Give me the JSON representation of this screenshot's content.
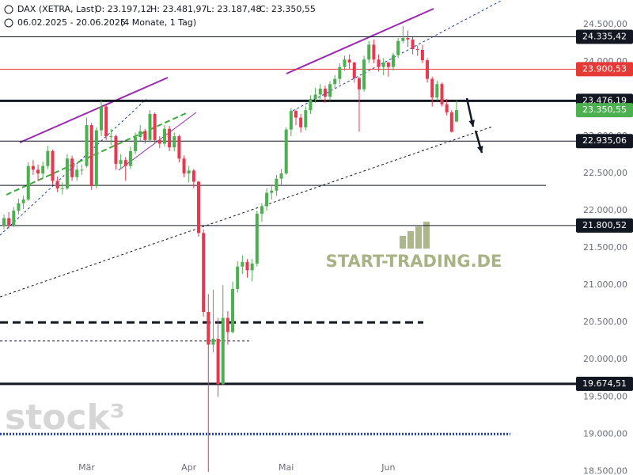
{
  "chart_data": {
    "type": "candlestick",
    "title": "DAX (XETRA, Last)",
    "ohlc_header": [
      "O: 23.197,12",
      "H: 23.481,97",
      "L: 23.187,48",
      "C: 23.350,55"
    ],
    "subtitle": "06.02.2025 - 20.06.2025",
    "period": "(4 Monate, 1 Tag)",
    "watermarks": [
      "START-TRADING.DE",
      "stock³"
    ],
    "up_color": "#4caf50",
    "down_color": "#e8384f",
    "ylim": [
      18450,
      24830
    ],
    "yticks": [
      {
        "value": 18500,
        "label": "18.500,00"
      },
      {
        "value": 19000,
        "label": "19.000,00"
      },
      {
        "value": 19500,
        "label": "19.500,00"
      },
      {
        "value": 20000,
        "label": "20.000,00"
      },
      {
        "value": 20500,
        "label": "20.500,00"
      },
      {
        "value": 21000,
        "label": "21.000,00"
      },
      {
        "value": 21500,
        "label": "21.500,00"
      },
      {
        "value": 22000,
        "label": "22.000,00"
      },
      {
        "value": 22500,
        "label": "22.500,00"
      },
      {
        "value": 23000,
        "label": "23.000,00"
      },
      {
        "value": 23500,
        "label": "23.500,00"
      },
      {
        "value": 24000,
        "label": "24.000,00"
      },
      {
        "value": 24500,
        "label": "24.500,00"
      }
    ],
    "xticks": [
      {
        "value": 17,
        "label": "Mär"
      },
      {
        "value": 38,
        "label": "Apr"
      },
      {
        "value": 58,
        "label": "Mai"
      },
      {
        "value": 79,
        "label": "Jun"
      }
    ],
    "levels": [
      {
        "value": 24335.42,
        "label": "24.335,42",
        "color": "#131722",
        "width": 1
      },
      {
        "value": 23900.53,
        "label": "23.900,53",
        "color": "#e53935",
        "width": 1
      },
      {
        "value": 23476.19,
        "label": "23.476,19",
        "color": "#131722",
        "width": 3
      },
      {
        "value": 22935.06,
        "label": "22.935,06",
        "color": "#131722",
        "width": 1
      },
      {
        "value": 21800.52,
        "label": "21.800,52",
        "color": "#131722",
        "width": 1
      },
      {
        "value": 19674.51,
        "label": "19.674,51",
        "color": "#131722",
        "width": 3
      },
      {
        "value": 23350.55,
        "label": "23.350,55",
        "color": "#4caf50",
        "width": 0
      }
    ],
    "lines": [
      {
        "value": 22340,
        "color": "#131722",
        "width": 1,
        "dash": "none"
      },
      {
        "value": 20500,
        "color": "#131722",
        "width": 3,
        "dash": "10 6"
      },
      {
        "value": 20250,
        "color": "#131722",
        "width": 1,
        "dash": "3 3"
      },
      {
        "value": 19000,
        "color": "#1e3fa8",
        "width": 3,
        "dash": "2 2"
      }
    ],
    "candles": [
      [
        21800,
        21950,
        21750,
        21900
      ],
      [
        21900,
        21980,
        21760,
        21800
      ],
      [
        21800,
        22050,
        21780,
        22000
      ],
      [
        22000,
        22160,
        21950,
        22100
      ],
      [
        22100,
        22200,
        22020,
        22150
      ],
      [
        22150,
        22650,
        22130,
        22600
      ],
      [
        22600,
        22680,
        22480,
        22550
      ],
      [
        22550,
        22620,
        22400,
        22500
      ],
      [
        22500,
        22660,
        22440,
        22600
      ],
      [
        22600,
        22870,
        22560,
        22800
      ],
      [
        22800,
        22820,
        22350,
        22400
      ],
      [
        22400,
        22460,
        22250,
        22300
      ],
      [
        22300,
        22380,
        22220,
        22300
      ],
      [
        22300,
        22760,
        22280,
        22700
      ],
      [
        22700,
        22740,
        22400,
        22450
      ],
      [
        22450,
        22620,
        22400,
        22550
      ],
      [
        22550,
        22620,
        22480,
        22550
      ],
      [
        22600,
        23250,
        22580,
        23150
      ],
      [
        23150,
        23180,
        22280,
        22330
      ],
      [
        22330,
        23120,
        22300,
        23080
      ],
      [
        23080,
        23480,
        23000,
        23400
      ],
      [
        23400,
        23420,
        22950,
        23000
      ],
      [
        23000,
        23100,
        22880,
        23000
      ],
      [
        23000,
        23020,
        22550,
        22630
      ],
      [
        22630,
        22760,
        22560,
        22680
      ],
      [
        22680,
        22720,
        22400,
        22600
      ],
      [
        22600,
        22860,
        22560,
        22800
      ],
      [
        22800,
        23050,
        22760,
        22990
      ],
      [
        22990,
        23150,
        22940,
        23070
      ],
      [
        23070,
        23100,
        22900,
        22950
      ],
      [
        22950,
        23350,
        22920,
        23300
      ],
      [
        23300,
        23320,
        22900,
        22950
      ],
      [
        22950,
        23000,
        22840,
        22900
      ],
      [
        22900,
        23150,
        22860,
        23100
      ],
      [
        23100,
        23140,
        22800,
        22850
      ],
      [
        22850,
        23050,
        22800,
        23000
      ],
      [
        23000,
        23020,
        22650,
        22700
      ],
      [
        22700,
        22740,
        22450,
        22500
      ],
      [
        22500,
        22600,
        22380,
        22540
      ],
      [
        22540,
        22560,
        22300,
        22390
      ],
      [
        22390,
        22400,
        21650,
        21700
      ],
      [
        21700,
        21750,
        20580,
        20640
      ],
      [
        20640,
        20880,
        18490,
        20200
      ],
      [
        20200,
        20940,
        20100,
        20280
      ],
      [
        20280,
        20560,
        19500,
        19670
      ],
      [
        19670,
        21000,
        19660,
        20560
      ],
      [
        20560,
        20650,
        20200,
        20370
      ],
      [
        20370,
        21050,
        20350,
        20950
      ],
      [
        20950,
        21320,
        20900,
        21250
      ],
      [
        21250,
        21400,
        21150,
        21310
      ],
      [
        21310,
        21350,
        21100,
        21200
      ],
      [
        21200,
        21350,
        21050,
        21290
      ],
      [
        21290,
        22000,
        21250,
        21960
      ],
      [
        21960,
        22100,
        21850,
        22060
      ],
      [
        22060,
        22300,
        22000,
        22240
      ],
      [
        22240,
        22330,
        22150,
        22270
      ],
      [
        22270,
        22480,
        22200,
        22430
      ],
      [
        22430,
        22560,
        22350,
        22500
      ],
      [
        22500,
        23120,
        22480,
        23090
      ],
      [
        23090,
        23380,
        23000,
        23340
      ],
      [
        23340,
        23360,
        23150,
        23250
      ],
      [
        23250,
        23300,
        23050,
        23120
      ],
      [
        23120,
        23400,
        23080,
        23350
      ],
      [
        23350,
        23550,
        23300,
        23500
      ],
      [
        23500,
        23650,
        23450,
        23560
      ],
      [
        23560,
        23700,
        23500,
        23640
      ],
      [
        23640,
        23680,
        23450,
        23530
      ],
      [
        23530,
        23740,
        23480,
        23700
      ],
      [
        23700,
        23820,
        23650,
        23770
      ],
      [
        23770,
        23980,
        23700,
        23930
      ],
      [
        23930,
        24080,
        23880,
        24030
      ],
      [
        24030,
        24100,
        23900,
        23990
      ],
      [
        23990,
        24000,
        23720,
        23780
      ],
      [
        23780,
        23800,
        23060,
        23630
      ],
      [
        23630,
        24080,
        23600,
        24030
      ],
      [
        24030,
        24280,
        23980,
        24230
      ],
      [
        24230,
        24300,
        23980,
        24030
      ],
      [
        24030,
        24100,
        23870,
        23930
      ],
      [
        23930,
        24050,
        23820,
        23990
      ],
      [
        23990,
        24000,
        23800,
        23930
      ],
      [
        23930,
        24120,
        23880,
        24090
      ],
      [
        24090,
        24320,
        24050,
        24280
      ],
      [
        24280,
        24480,
        24250,
        24320
      ],
      [
        24320,
        24420,
        24200,
        24300
      ],
      [
        24300,
        24330,
        24100,
        24170
      ],
      [
        24170,
        24220,
        24080,
        24160
      ],
      [
        24160,
        24230,
        23980,
        24020
      ],
      [
        24020,
        24050,
        23720,
        23770
      ],
      [
        23770,
        23800,
        23400,
        23520
      ],
      [
        23520,
        23750,
        23480,
        23700
      ],
      [
        23700,
        23720,
        23400,
        23430
      ],
      [
        23430,
        23500,
        23280,
        23320
      ],
      [
        23320,
        23350,
        23050,
        23060
      ],
      [
        23197.12,
        23481.97,
        23187.48,
        23350.55
      ]
    ]
  }
}
